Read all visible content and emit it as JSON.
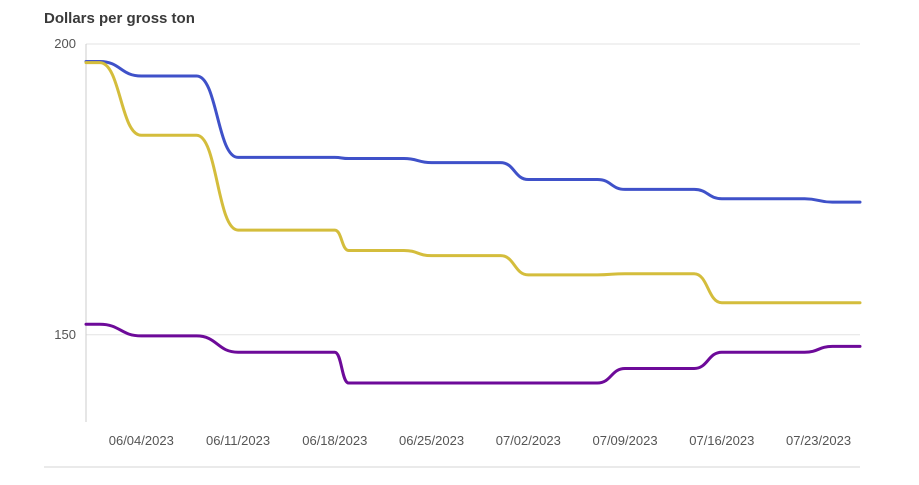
{
  "chart_data": {
    "type": "line",
    "ylabel": "Dollars per gross ton",
    "ylim": [
      135,
      200
    ],
    "y_ticks": [
      150,
      200
    ],
    "x_range": [
      "2023-05-31",
      "2023-07-26"
    ],
    "x_tick_labels": [
      "06/04/2023",
      "06/11/2023",
      "06/18/2023",
      "06/25/2023",
      "07/02/2023",
      "07/09/2023",
      "07/16/2023",
      "07/23/2023"
    ],
    "x_tick_dates": [
      "2023-06-04",
      "2023-06-11",
      "2023-06-18",
      "2023-06-25",
      "2023-07-02",
      "2023-07-09",
      "2023-07-16",
      "2023-07-23"
    ],
    "grid": true,
    "series": [
      {
        "color": "#3f51c9",
        "points": [
          [
            "2023-05-31",
            197
          ],
          [
            "2023-06-01",
            197
          ],
          [
            "2023-06-04",
            194.5
          ],
          [
            "2023-06-08",
            194.5
          ],
          [
            "2023-06-11",
            180.5
          ],
          [
            "2023-06-18",
            180.5
          ],
          [
            "2023-06-19",
            180.3
          ],
          [
            "2023-06-23",
            180.3
          ],
          [
            "2023-06-25",
            179.6
          ],
          [
            "2023-06-30",
            179.6
          ],
          [
            "2023-07-02",
            176.7
          ],
          [
            "2023-07-07",
            176.7
          ],
          [
            "2023-07-09",
            175
          ],
          [
            "2023-07-14",
            175
          ],
          [
            "2023-07-16",
            173.4
          ],
          [
            "2023-07-22",
            173.4
          ],
          [
            "2023-07-24",
            172.8
          ],
          [
            "2023-07-26",
            172.8
          ]
        ]
      },
      {
        "color": "#d4bd3c",
        "points": [
          [
            "2023-05-31",
            196.8
          ],
          [
            "2023-06-01",
            196.8
          ],
          [
            "2023-06-04",
            184.3
          ],
          [
            "2023-06-08",
            184.3
          ],
          [
            "2023-06-11",
            168
          ],
          [
            "2023-06-18",
            168
          ],
          [
            "2023-06-19",
            164.5
          ],
          [
            "2023-06-23",
            164.5
          ],
          [
            "2023-06-25",
            163.6
          ],
          [
            "2023-06-30",
            163.6
          ],
          [
            "2023-07-02",
            160.3
          ],
          [
            "2023-07-07",
            160.3
          ],
          [
            "2023-07-09",
            160.5
          ],
          [
            "2023-07-14",
            160.5
          ],
          [
            "2023-07-16",
            155.5
          ],
          [
            "2023-07-22",
            155.5
          ],
          [
            "2023-07-26",
            155.5
          ]
        ]
      },
      {
        "color": "#6d0a99",
        "points": [
          [
            "2023-05-31",
            151.8
          ],
          [
            "2023-06-01",
            151.8
          ],
          [
            "2023-06-04",
            149.8
          ],
          [
            "2023-06-08",
            149.8
          ],
          [
            "2023-06-11",
            147
          ],
          [
            "2023-06-18",
            147
          ],
          [
            "2023-06-19",
            141.7
          ],
          [
            "2023-06-23",
            141.7
          ],
          [
            "2023-06-25",
            141.7
          ],
          [
            "2023-06-30",
            141.7
          ],
          [
            "2023-07-02",
            141.7
          ],
          [
            "2023-07-07",
            141.7
          ],
          [
            "2023-07-09",
            144.2
          ],
          [
            "2023-07-14",
            144.2
          ],
          [
            "2023-07-16",
            147
          ],
          [
            "2023-07-22",
            147
          ],
          [
            "2023-07-24",
            148
          ],
          [
            "2023-07-26",
            148
          ]
        ]
      }
    ]
  }
}
